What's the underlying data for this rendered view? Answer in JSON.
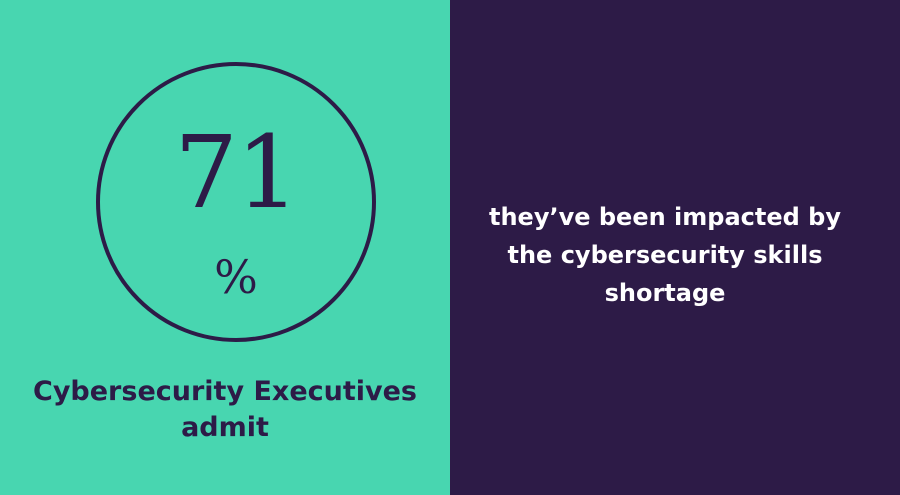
{
  "stat": {
    "number": "71",
    "unit": "%"
  },
  "left_caption": {
    "line1": "Cybersecurity Executives",
    "line2": "admit"
  },
  "right_caption": {
    "line1": "they’ve been impacted by",
    "line2": "the cybersecurity skills",
    "line3": "shortage"
  },
  "colors": {
    "accent_green": "#48d6b0",
    "dark_purple": "#2d1b47",
    "text_light": "#ffffff"
  }
}
